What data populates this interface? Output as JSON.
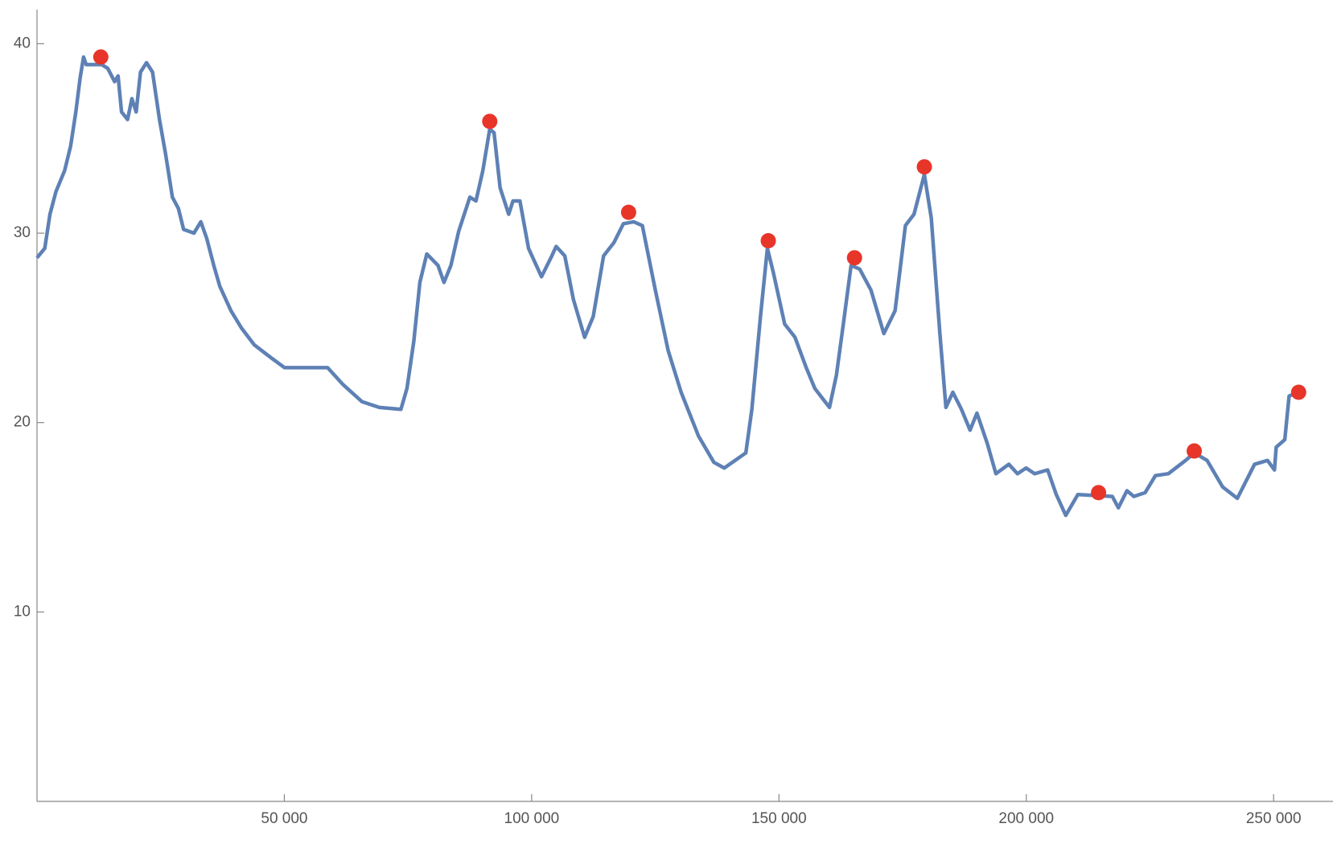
{
  "chart_data": {
    "type": "line",
    "xlim": [
      0,
      262000
    ],
    "ylim": [
      0,
      41.8
    ],
    "xticks": [
      {
        "value": 50000,
        "label": "50 000"
      },
      {
        "value": 100000,
        "label": "100 000"
      },
      {
        "value": 150000,
        "label": "150 000"
      },
      {
        "value": 200000,
        "label": "200 000"
      },
      {
        "value": 250000,
        "label": "250 000"
      }
    ],
    "yticks": [
      10,
      20,
      30,
      40
    ],
    "grid": false,
    "series": [
      {
        "style": "line",
        "color": "#5e81b5",
        "x": [
          0,
          1570,
          2620,
          3840,
          5580,
          6800,
          7850,
          8720,
          9410,
          9940,
          13080,
          14300,
          15690,
          16390,
          17090,
          18310,
          19180,
          20050,
          20920,
          22140,
          23360,
          24760,
          25980,
          27370,
          28590,
          29630,
          31720,
          33120,
          34340,
          35730,
          36950,
          39220,
          41310,
          43930,
          47420,
          50030,
          58750,
          61890,
          65720,
          69210,
          73570,
          74790,
          76180,
          77400,
          78800,
          81060,
          82280,
          83680,
          85250,
          87510,
          88740,
          90130,
          91530,
          92400,
          93620,
          95360,
          96230,
          97630,
          99370,
          101990,
          104080,
          104950,
          106700,
          108440,
          110710,
          112450,
          114540,
          116630,
          118550,
          120640,
          122380,
          125000,
          127600,
          130220,
          133710,
          136840,
          138940,
          143300,
          144520,
          146260,
          147660,
          148880,
          151150,
          153240,
          155510,
          157250,
          160210,
          161610,
          163010,
          164580,
          166320,
          168590,
          171200,
          173470,
          175560,
          177300,
          179390,
          180790,
          182530,
          183750,
          185150,
          186890,
          188630,
          190020,
          192110,
          193860,
          196470,
          198220,
          199960,
          201700,
          204320,
          206060,
          207980,
          210420,
          217390,
          218610,
          220350,
          221750,
          224020,
          226110,
          228720,
          232200,
          233950,
          236560,
          239700,
          242660,
          246150,
          248770,
          250170,
          250520,
          252260,
          253130,
          254880
        ],
        "values": [
          28.7,
          29.2,
          31.0,
          32.2,
          33.3,
          34.6,
          36.4,
          38.2,
          39.3,
          38.9,
          38.9,
          38.7,
          38.0,
          38.3,
          36.4,
          36.0,
          37.1,
          36.4,
          38.5,
          39.0,
          38.5,
          36.0,
          34.2,
          31.9,
          31.3,
          30.2,
          30.0,
          30.6,
          29.7,
          28.3,
          27.2,
          25.9,
          25.0,
          24.1,
          23.4,
          22.9,
          22.9,
          22.0,
          21.1,
          20.8,
          20.7,
          21.8,
          24.3,
          27.4,
          28.9,
          28.3,
          27.4,
          28.3,
          30.1,
          31.9,
          31.7,
          33.3,
          35.5,
          35.3,
          32.4,
          31.0,
          31.7,
          31.7,
          29.2,
          27.7,
          28.8,
          29.3,
          28.8,
          26.5,
          24.5,
          25.6,
          28.8,
          29.5,
          30.5,
          30.6,
          30.4,
          27.0,
          23.8,
          21.6,
          19.3,
          17.9,
          17.6,
          18.4,
          20.7,
          25.6,
          29.2,
          27.9,
          25.2,
          24.5,
          22.9,
          21.8,
          20.8,
          22.5,
          25.2,
          28.3,
          28.1,
          27.0,
          24.7,
          25.9,
          30.4,
          31.0,
          33.1,
          30.8,
          24.7,
          20.8,
          21.6,
          20.7,
          19.6,
          20.5,
          18.9,
          17.3,
          17.8,
          17.3,
          17.6,
          17.3,
          17.5,
          16.2,
          15.1,
          16.2,
          16.1,
          15.5,
          16.4,
          16.1,
          16.3,
          17.2,
          17.3,
          18.0,
          18.4,
          18.0,
          16.6,
          16.0,
          17.8,
          18.0,
          17.5,
          18.7,
          19.1,
          21.4,
          21.6
        ]
      },
      {
        "style": "points",
        "color": "#e8352a",
        "x": [
          12900,
          91530,
          119600,
          147840,
          165270,
          179390,
          214610,
          233950,
          255060
        ],
        "values": [
          39.3,
          35.9,
          31.1,
          29.6,
          28.7,
          33.5,
          16.3,
          18.5,
          21.6
        ]
      }
    ]
  }
}
